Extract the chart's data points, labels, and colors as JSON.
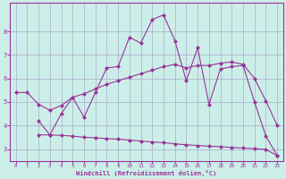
{
  "background_color": "#cceee8",
  "grid_color": "#aaaacc",
  "line_color": "#993399",
  "marker": "D",
  "marker_size": 2.0,
  "marker_lw": 0.5,
  "line_width": 0.8,
  "xlabel": "Windchill (Refroidissement éolien,°C)",
  "xlabel_color": "#993399",
  "xlim": [
    -0.5,
    23.5
  ],
  "ylim": [
    2.5,
    9.2
  ],
  "yticks": [
    3,
    4,
    5,
    6,
    7,
    8
  ],
  "xticks": [
    0,
    1,
    2,
    3,
    4,
    5,
    6,
    7,
    8,
    9,
    10,
    11,
    12,
    13,
    14,
    15,
    16,
    17,
    18,
    19,
    20,
    21,
    22,
    23
  ],
  "series": [
    {
      "x": [
        2,
        3,
        4,
        5,
        6,
        7,
        8,
        9,
        10,
        11,
        12,
        13,
        14,
        15,
        16,
        17,
        18,
        19,
        20,
        21,
        22,
        23
      ],
      "y": [
        4.2,
        3.6,
        4.5,
        5.2,
        4.35,
        5.4,
        6.45,
        6.5,
        7.75,
        7.5,
        8.5,
        8.7,
        7.6,
        5.9,
        7.3,
        4.9,
        6.4,
        6.5,
        6.55,
        5.0,
        3.55,
        2.72
      ]
    },
    {
      "x": [
        0,
        1,
        2,
        3,
        4,
        5,
        6,
        7,
        8,
        9,
        10,
        11,
        12,
        13,
        14,
        15,
        16,
        17,
        18,
        19,
        20,
        21,
        22,
        23
      ],
      "y": [
        5.4,
        5.4,
        4.9,
        4.65,
        4.85,
        5.2,
        5.35,
        5.55,
        5.75,
        5.9,
        6.05,
        6.2,
        6.35,
        6.5,
        6.6,
        6.45,
        6.55,
        6.55,
        6.65,
        6.7,
        6.6,
        6.0,
        5.05,
        4.0
      ]
    },
    {
      "x": [
        2,
        3,
        4,
        5,
        6,
        7,
        8,
        9,
        10,
        11,
        12,
        13,
        14,
        15,
        16,
        17,
        18,
        19,
        20,
        21,
        22,
        23
      ],
      "y": [
        3.6,
        3.6,
        3.58,
        3.55,
        3.5,
        3.48,
        3.44,
        3.42,
        3.38,
        3.34,
        3.3,
        3.27,
        3.22,
        3.18,
        3.15,
        3.12,
        3.1,
        3.07,
        3.04,
        3.02,
        2.98,
        2.72
      ]
    }
  ]
}
